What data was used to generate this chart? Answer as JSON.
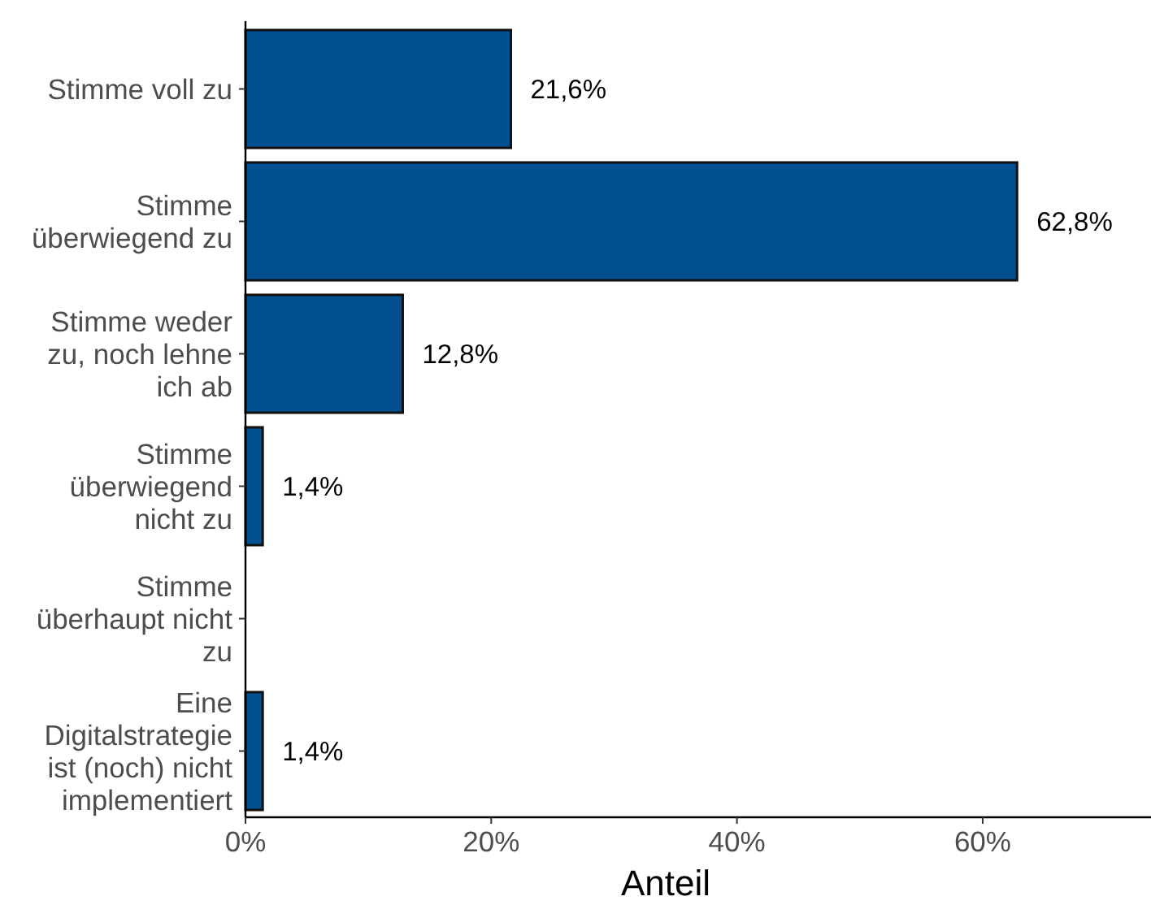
{
  "chart_data": {
    "type": "bar",
    "orientation": "horizontal",
    "xlabel": "Anteil",
    "categories": [
      "Stimme voll zu",
      "Stimme überwiegend zu",
      "Stimme weder zu, noch lehne ich ab",
      "Stimme überwiegend nicht zu",
      "Stimme überhaupt nicht zu",
      "Eine Digitalstrategie ist (noch) nicht implementiert"
    ],
    "values": [
      21.6,
      62.8,
      12.8,
      1.4,
      0,
      1.4
    ],
    "value_labels": [
      "21,6%",
      "62,8%",
      "12,8%",
      "1,4%",
      null,
      "1,4%"
    ],
    "color": "#02508f",
    "xlim": [
      0,
      73.7
    ],
    "xticks": [
      {
        "value": 0,
        "label": "0%"
      },
      {
        "value": 20,
        "label": "20%"
      },
      {
        "value": 40,
        "label": "40%"
      },
      {
        "value": 60,
        "label": "60%"
      }
    ],
    "grid": false
  }
}
